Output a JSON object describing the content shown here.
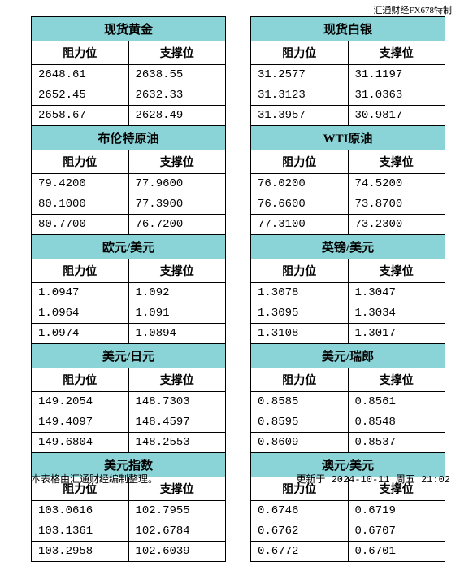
{
  "header_note": "汇通财经FX678特制",
  "colors": {
    "title_bg": "#8ad3d6",
    "border": "#000000",
    "background": "#ffffff",
    "text": "#000000"
  },
  "col_headers": {
    "resistance": "阻力位",
    "support": "支撑位"
  },
  "left_blocks": [
    {
      "title": "现货黄金",
      "rows": [
        [
          "2648.61",
          "2638.55"
        ],
        [
          "2652.45",
          "2632.33"
        ],
        [
          "2658.67",
          "2628.49"
        ]
      ]
    },
    {
      "title": "布伦特原油",
      "rows": [
        [
          "79.4200",
          "77.9600"
        ],
        [
          "80.1000",
          "77.3900"
        ],
        [
          "80.7700",
          "76.7200"
        ]
      ]
    },
    {
      "title": "欧元/美元",
      "rows": [
        [
          "1.0947",
          "1.092"
        ],
        [
          "1.0964",
          "1.091"
        ],
        [
          "1.0974",
          "1.0894"
        ]
      ]
    },
    {
      "title": "美元/日元",
      "rows": [
        [
          "149.2054",
          "148.7303"
        ],
        [
          "149.4097",
          "148.4597"
        ],
        [
          "149.6804",
          "148.2553"
        ]
      ]
    },
    {
      "title": "美元指数",
      "rows": [
        [
          "103.0616",
          "102.7955"
        ],
        [
          "103.1361",
          "102.6784"
        ],
        [
          "103.2958",
          "102.6039"
        ]
      ]
    }
  ],
  "right_blocks": [
    {
      "title": "现货白银",
      "rows": [
        [
          "31.2577",
          "31.1197"
        ],
        [
          "31.3123",
          "31.0363"
        ],
        [
          "31.3957",
          "30.9817"
        ]
      ]
    },
    {
      "title": "WTI原油",
      "rows": [
        [
          "76.0200",
          "74.5200"
        ],
        [
          "76.6600",
          "73.8700"
        ],
        [
          "77.3100",
          "73.2300"
        ]
      ]
    },
    {
      "title": "英镑/美元",
      "rows": [
        [
          "1.3078",
          "1.3047"
        ],
        [
          "1.3095",
          "1.3034"
        ],
        [
          "1.3108",
          "1.3017"
        ]
      ]
    },
    {
      "title": "美元/瑞郎",
      "rows": [
        [
          "0.8585",
          "0.8561"
        ],
        [
          "0.8595",
          "0.8548"
        ],
        [
          "0.8609",
          "0.8537"
        ]
      ]
    },
    {
      "title": "澳元/美元",
      "rows": [
        [
          "0.6746",
          "0.6719"
        ],
        [
          "0.6762",
          "0.6707"
        ],
        [
          "0.6772",
          "0.6701"
        ]
      ]
    }
  ],
  "footer_left": "本表格由汇通财经编制整理。",
  "footer_right": "更新于 2024-10-11 周五 21:02"
}
